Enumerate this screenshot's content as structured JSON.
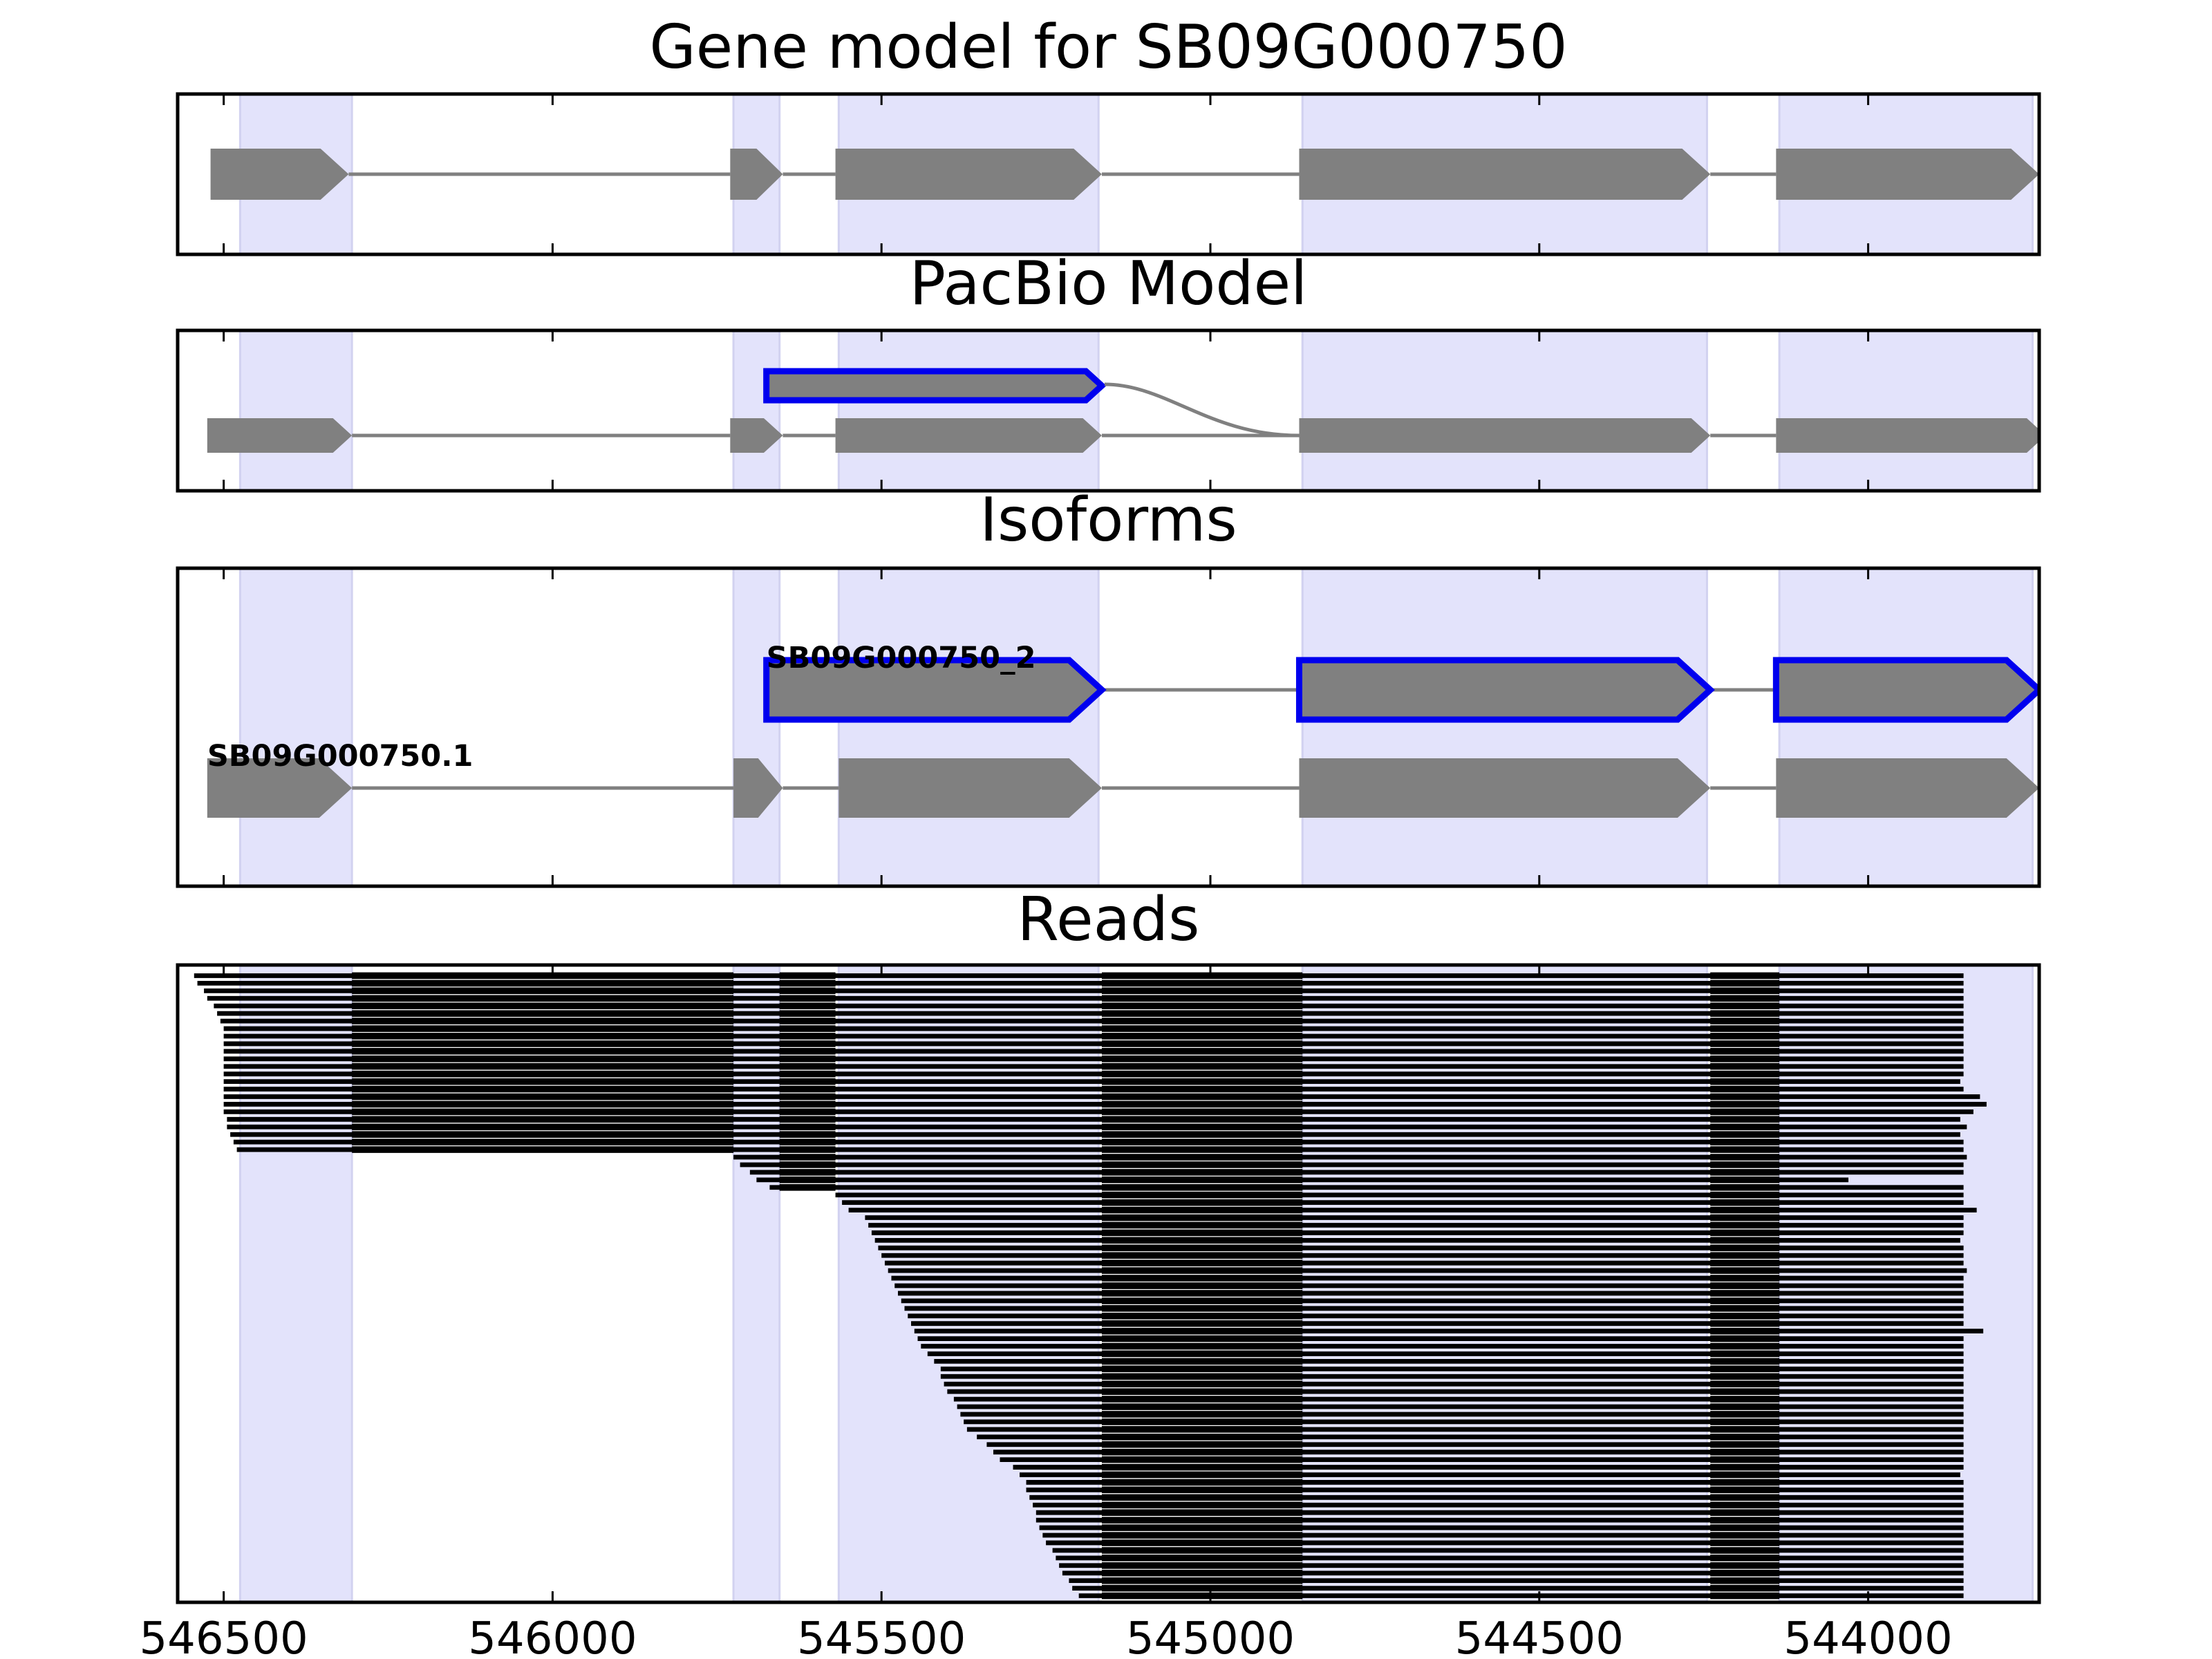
{
  "chart_data": {
    "type": "gene_track",
    "xlabel": "",
    "ylabel": "",
    "x_ticks": [
      546500,
      546000,
      545500,
      545000,
      544500,
      544000
    ],
    "x_tick_labels": [
      "546500",
      "546000",
      "545500",
      "545000",
      "544500",
      "544000"
    ],
    "xlim": [
      546570,
      543740
    ],
    "x_reversed": true,
    "highlight_regions": [
      [
        546475,
        546305
      ],
      [
        545725,
        545655
      ],
      [
        545565,
        545170
      ],
      [
        544860,
        544245
      ],
      [
        544135,
        543750
      ]
    ],
    "colors": {
      "exon": "#808080",
      "intron": "#808080",
      "novel_outline": "#0000ee",
      "highlight": "#e3e3fb",
      "read": "#000000"
    },
    "panels": [
      {
        "title": "Gene model for SB09G000750",
        "transcripts": [
          {
            "name": "",
            "strand": "-",
            "highlighted": false,
            "exons": [
              [
                546520,
                546310
              ],
              [
                545730,
                545650
              ],
              [
                545570,
                545165
              ],
              [
                544865,
                544240
              ],
              [
                544140,
                543740
              ]
            ]
          }
        ]
      },
      {
        "title": "PacBio Model",
        "transcripts": [
          {
            "name": "",
            "strand": "-",
            "highlighted": false,
            "exons": [
              [
                546525,
                546305
              ],
              [
                545730,
                545650
              ],
              [
                545570,
                545165
              ],
              [
                544865,
                544240
              ],
              [
                544140,
                543730
              ]
            ]
          },
          {
            "name": "",
            "strand": "-",
            "highlighted": true,
            "exons": [
              [
                545675,
                545165
              ]
            ]
          }
        ]
      },
      {
        "title": "Isoforms",
        "transcripts": [
          {
            "name": "SB09G000750_2",
            "strand": "-",
            "highlighted": true,
            "exons": [
              [
                545675,
                545165
              ],
              [
                544865,
                544240
              ],
              [
                544140,
                543740
              ]
            ]
          },
          {
            "name": "SB09G000750.1",
            "strand": "-",
            "highlighted": false,
            "exons": [
              [
                546525,
                546305
              ],
              [
                545725,
                545650
              ],
              [
                545565,
                545165
              ],
              [
                544865,
                544240
              ],
              [
                544140,
                543740
              ]
            ]
          }
        ]
      },
      {
        "title": "Reads",
        "read_exons": [
          [
            546305,
            545725
          ],
          [
            545655,
            545570
          ],
          [
            545165,
            544860
          ],
          [
            544240,
            544135
          ]
        ],
        "reads": [
          [
            546545,
            543855
          ],
          [
            546540,
            543855
          ],
          [
            546530,
            543855
          ],
          [
            546525,
            543855
          ],
          [
            546515,
            543855
          ],
          [
            546510,
            543855
          ],
          [
            546505,
            543855
          ],
          [
            546500,
            543855
          ],
          [
            546500,
            543855
          ],
          [
            546500,
            543855
          ],
          [
            546500,
            543855
          ],
          [
            546500,
            543855
          ],
          [
            546500,
            543855
          ],
          [
            546500,
            543855
          ],
          [
            546500,
            543860
          ],
          [
            546500,
            543855
          ],
          [
            546500,
            543830
          ],
          [
            546500,
            543820
          ],
          [
            546500,
            543840
          ],
          [
            546495,
            543860
          ],
          [
            546495,
            543850
          ],
          [
            546490,
            543860
          ],
          [
            546485,
            543855
          ],
          [
            546480,
            543855
          ],
          [
            545725,
            543850
          ],
          [
            545715,
            543855
          ],
          [
            545700,
            543855
          ],
          [
            545690,
            544030
          ],
          [
            545670,
            543855
          ],
          [
            545570,
            543855
          ],
          [
            545560,
            543855
          ],
          [
            545550,
            543835
          ],
          [
            545525,
            543855
          ],
          [
            545520,
            543855
          ],
          [
            545515,
            543855
          ],
          [
            545510,
            543860
          ],
          [
            545505,
            543855
          ],
          [
            545500,
            543855
          ],
          [
            545495,
            543855
          ],
          [
            545490,
            543850
          ],
          [
            545485,
            543855
          ],
          [
            545480,
            543855
          ],
          [
            545475,
            543855
          ],
          [
            545470,
            543855
          ],
          [
            545465,
            543855
          ],
          [
            545460,
            543855
          ],
          [
            545455,
            543855
          ],
          [
            545450,
            543825
          ],
          [
            545445,
            543855
          ],
          [
            545440,
            543855
          ],
          [
            545430,
            543855
          ],
          [
            545420,
            543855
          ],
          [
            545410,
            543855
          ],
          [
            545410,
            543855
          ],
          [
            545405,
            543855
          ],
          [
            545400,
            543855
          ],
          [
            545390,
            543855
          ],
          [
            545385,
            543855
          ],
          [
            545380,
            543855
          ],
          [
            545375,
            543855
          ],
          [
            545370,
            543855
          ],
          [
            545355,
            543855
          ],
          [
            545340,
            543855
          ],
          [
            545330,
            543855
          ],
          [
            545320,
            543855
          ],
          [
            545300,
            543855
          ],
          [
            545290,
            543860
          ],
          [
            545280,
            543855
          ],
          [
            545280,
            543855
          ],
          [
            545275,
            543855
          ],
          [
            545270,
            543855
          ],
          [
            545265,
            543855
          ],
          [
            545265,
            543855
          ],
          [
            545260,
            543855
          ],
          [
            545255,
            543855
          ],
          [
            545250,
            543855
          ],
          [
            545240,
            543855
          ],
          [
            545235,
            543855
          ],
          [
            545230,
            543855
          ],
          [
            545225,
            543855
          ],
          [
            545215,
            543855
          ],
          [
            545210,
            543855
          ],
          [
            545200,
            543855
          ]
        ]
      }
    ]
  }
}
